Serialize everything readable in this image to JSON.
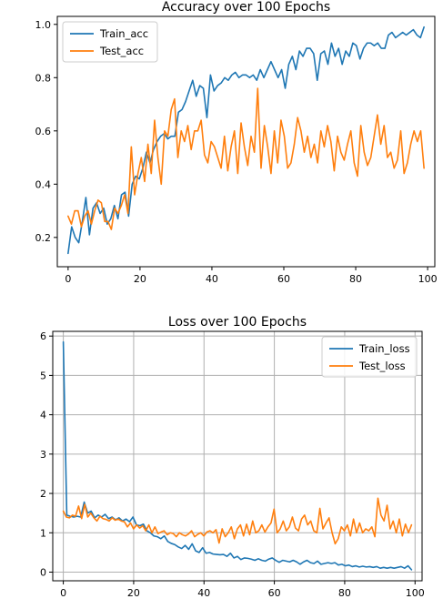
{
  "chart_data": [
    {
      "type": "line",
      "title": "Accuracy over 100 Epochs",
      "xlabel": "",
      "ylabel": "",
      "xlim": [
        -3,
        102
      ],
      "ylim": [
        0.09,
        1.03
      ],
      "xticks": [
        0,
        20,
        40,
        60,
        80,
        100
      ],
      "yticks": [
        0.2,
        0.4,
        0.6,
        0.8,
        1.0
      ],
      "ytick_labels": [
        "0.2",
        "0.4",
        "0.6",
        "0.8",
        "1.0"
      ],
      "grid": false,
      "legend_position": "upper-left",
      "series": [
        {
          "name": "Train_acc",
          "color": "#1f77b4",
          "values": [
            0.14,
            0.24,
            0.2,
            0.18,
            0.26,
            0.35,
            0.21,
            0.31,
            0.33,
            0.29,
            0.31,
            0.25,
            0.27,
            0.32,
            0.27,
            0.36,
            0.37,
            0.28,
            0.4,
            0.43,
            0.42,
            0.46,
            0.52,
            0.48,
            0.53,
            0.56,
            0.58,
            0.59,
            0.57,
            0.58,
            0.58,
            0.67,
            0.68,
            0.71,
            0.75,
            0.79,
            0.73,
            0.77,
            0.76,
            0.65,
            0.81,
            0.75,
            0.77,
            0.78,
            0.8,
            0.79,
            0.81,
            0.82,
            0.8,
            0.81,
            0.81,
            0.8,
            0.81,
            0.79,
            0.83,
            0.8,
            0.83,
            0.86,
            0.83,
            0.8,
            0.83,
            0.76,
            0.85,
            0.88,
            0.83,
            0.9,
            0.88,
            0.91,
            0.91,
            0.89,
            0.79,
            0.89,
            0.9,
            0.85,
            0.93,
            0.88,
            0.91,
            0.85,
            0.9,
            0.88,
            0.93,
            0.92,
            0.87,
            0.91,
            0.93,
            0.93,
            0.92,
            0.93,
            0.91,
            0.91,
            0.96,
            0.97,
            0.95,
            0.96,
            0.97,
            0.96,
            0.97,
            0.98,
            0.96,
            0.95,
            0.99
          ]
        },
        {
          "name": "Test_acc",
          "color": "#ff7f0e",
          "values": [
            0.28,
            0.25,
            0.3,
            0.3,
            0.24,
            0.28,
            0.3,
            0.25,
            0.3,
            0.34,
            0.33,
            0.26,
            0.26,
            0.23,
            0.31,
            0.29,
            0.32,
            0.36,
            0.29,
            0.54,
            0.36,
            0.44,
            0.5,
            0.41,
            0.55,
            0.44,
            0.64,
            0.5,
            0.4,
            0.6,
            0.58,
            0.68,
            0.72,
            0.5,
            0.6,
            0.56,
            0.62,
            0.53,
            0.6,
            0.6,
            0.64,
            0.51,
            0.48,
            0.56,
            0.54,
            0.5,
            0.46,
            0.58,
            0.45,
            0.54,
            0.6,
            0.44,
            0.63,
            0.54,
            0.47,
            0.58,
            0.52,
            0.76,
            0.46,
            0.62,
            0.54,
            0.44,
            0.6,
            0.48,
            0.64,
            0.58,
            0.46,
            0.48,
            0.55,
            0.65,
            0.6,
            0.52,
            0.58,
            0.5,
            0.55,
            0.48,
            0.6,
            0.54,
            0.62,
            0.56,
            0.45,
            0.58,
            0.52,
            0.49,
            0.55,
            0.6,
            0.48,
            0.43,
            0.62,
            0.52,
            0.47,
            0.5,
            0.58,
            0.66,
            0.55,
            0.62,
            0.5,
            0.52,
            0.46,
            0.49,
            0.6,
            0.44,
            0.48,
            0.55,
            0.6,
            0.56,
            0.6,
            0.46
          ]
        }
      ]
    },
    {
      "type": "line",
      "title": "Loss over 100 Epochs",
      "xlabel": "",
      "ylabel": "",
      "xlim": [
        -3,
        102
      ],
      "ylim": [
        -0.22,
        6.12
      ],
      "xticks": [
        0,
        20,
        40,
        60,
        80,
        100
      ],
      "yticks": [
        0,
        1,
        2,
        3,
        4,
        5,
        6
      ],
      "ytick_labels": [
        "0",
        "1",
        "2",
        "3",
        "4",
        "5",
        "6"
      ],
      "grid": true,
      "legend_position": "upper-right",
      "series": [
        {
          "name": "Train_loss",
          "color": "#1f77b4",
          "values": [
            5.85,
            1.45,
            1.42,
            1.4,
            1.42,
            1.4,
            1.78,
            1.5,
            1.55,
            1.38,
            1.45,
            1.4,
            1.47,
            1.36,
            1.4,
            1.33,
            1.38,
            1.3,
            1.35,
            1.28,
            1.4,
            1.2,
            1.18,
            1.22,
            1.05,
            1.0,
            0.92,
            0.9,
            0.85,
            0.92,
            0.78,
            0.73,
            0.7,
            0.64,
            0.6,
            0.68,
            0.58,
            0.72,
            0.54,
            0.5,
            0.62,
            0.48,
            0.5,
            0.46,
            0.45,
            0.44,
            0.45,
            0.4,
            0.48,
            0.36,
            0.4,
            0.32,
            0.36,
            0.35,
            0.33,
            0.3,
            0.34,
            0.3,
            0.28,
            0.33,
            0.36,
            0.3,
            0.25,
            0.3,
            0.28,
            0.26,
            0.3,
            0.26,
            0.2,
            0.26,
            0.3,
            0.24,
            0.22,
            0.28,
            0.2,
            0.22,
            0.24,
            0.22,
            0.24,
            0.18,
            0.2,
            0.16,
            0.18,
            0.14,
            0.16,
            0.13,
            0.15,
            0.13,
            0.14,
            0.12,
            0.14,
            0.1,
            0.12,
            0.1,
            0.12,
            0.1,
            0.12,
            0.14,
            0.1,
            0.16,
            0.06
          ]
        },
        {
          "name": "Test_loss",
          "color": "#ff7f0e",
          "values": [
            1.55,
            1.4,
            1.38,
            1.45,
            1.42,
            1.68,
            1.36,
            1.72,
            1.4,
            1.5,
            1.38,
            1.3,
            1.42,
            1.36,
            1.34,
            1.3,
            1.38,
            1.32,
            1.35,
            1.3,
            1.28,
            1.15,
            1.25,
            1.1,
            1.2,
            1.12,
            1.18,
            1.05,
            1.2,
            1.0,
            1.15,
            0.98,
            1.02,
            1.05,
            0.95,
            1.0,
            0.98,
            0.9,
            1.0,
            0.95,
            0.92,
            0.97,
            1.05,
            0.9,
            0.96,
            1.0,
            0.92,
            1.02,
            1.05,
            1.0,
            1.08,
            0.74,
            1.1,
            0.9,
            1.0,
            1.15,
            0.85,
            1.1,
            1.2,
            0.92,
            1.22,
            0.95,
            1.3,
            1.0,
            1.05,
            1.2,
            1.02,
            1.15,
            1.25,
            1.6,
            1.0,
            1.1,
            1.3,
            1.05,
            1.15,
            1.4,
            1.12,
            1.05,
            1.35,
            1.45,
            1.2,
            1.3,
            1.05,
            1.0,
            1.62,
            1.1,
            1.25,
            1.38,
            1.0,
            0.72,
            0.85,
            1.15,
            1.05,
            1.2,
            0.92,
            1.35,
            1.0,
            1.25,
            1.0,
            1.1,
            1.05,
            1.15,
            0.9,
            1.88,
            1.45,
            1.3,
            1.7,
            1.1,
            1.3,
            1.0,
            1.35,
            0.92,
            1.22,
            1.0,
            1.2
          ]
        }
      ]
    }
  ]
}
